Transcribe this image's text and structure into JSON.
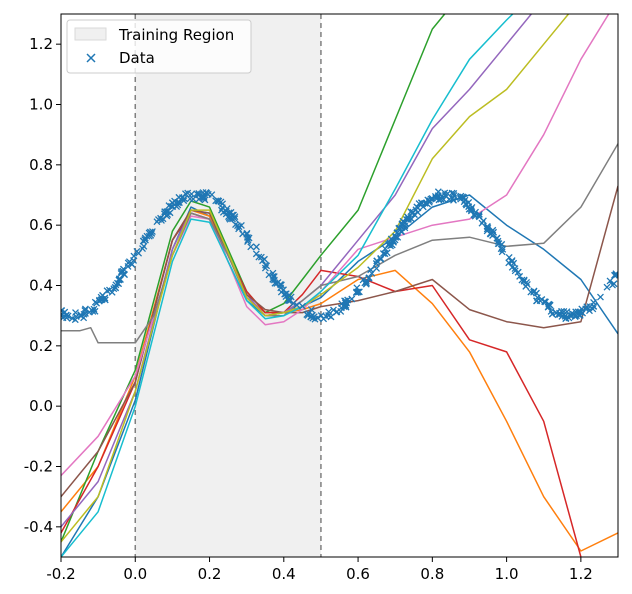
{
  "chart_data": {
    "type": "line",
    "title": "",
    "xlabel": "",
    "ylabel": "",
    "xlim": [
      -0.2,
      1.3
    ],
    "ylim": [
      -0.5,
      1.3
    ],
    "xticks": [
      "-0.2",
      "0.0",
      "0.2",
      "0.4",
      "0.6",
      "0.8",
      "1.0",
      "1.2"
    ],
    "xtick_values": [
      -0.2,
      0.0,
      0.2,
      0.4,
      0.6,
      0.8,
      1.0,
      1.2
    ],
    "yticks": [
      "-0.4",
      "-0.2",
      "0.0",
      "0.2",
      "0.4",
      "0.6",
      "0.8",
      "1.0",
      "1.2"
    ],
    "ytick_values": [
      -0.4,
      -0.2,
      0.0,
      0.2,
      0.4,
      0.6,
      0.8,
      1.0,
      1.2
    ],
    "grid": false,
    "legend_position": "top-left",
    "legend": [
      {
        "label": "Training Region",
        "kind": "shaded-region"
      },
      {
        "label": "Data",
        "kind": "scatter-marker"
      }
    ],
    "training_region": {
      "x0": 0.0,
      "x1": 0.5,
      "fill": "#f0f0f0",
      "boundary_color": "#808080",
      "boundary_style": "dashed"
    },
    "data_series": {
      "name": "Data",
      "marker": "x",
      "color": "#1f77b4",
      "x_range": [
        -0.2,
        1.3
      ],
      "count": 450,
      "function": "0.5 + 0.2*sin(3*pi*x) plus small noise"
    },
    "series": [
      {
        "color": "#1f77b4",
        "x": [
          -0.2,
          -0.1,
          0,
          0.1,
          0.15,
          0.2,
          0.25,
          0.3,
          0.35,
          0.4,
          0.45,
          0.5,
          0.6,
          0.7,
          0.8,
          0.9,
          1.0,
          1.1,
          1.2,
          1.3
        ],
        "y": [
          -0.5,
          -0.3,
          0.02,
          0.52,
          0.66,
          0.63,
          0.48,
          0.35,
          0.3,
          0.31,
          0.33,
          0.36,
          0.48,
          0.56,
          0.66,
          0.7,
          0.6,
          0.52,
          0.42,
          0.24
        ]
      },
      {
        "color": "#ff7f0e",
        "x": [
          -0.2,
          -0.1,
          0,
          0.1,
          0.15,
          0.2,
          0.25,
          0.3,
          0.35,
          0.4,
          0.45,
          0.5,
          0.6,
          0.7,
          0.8,
          0.9,
          1.0,
          1.1,
          1.2,
          1.3
        ],
        "y": [
          -0.35,
          -0.2,
          0.1,
          0.55,
          0.65,
          0.63,
          0.5,
          0.36,
          0.31,
          0.31,
          0.32,
          0.34,
          0.42,
          0.45,
          0.34,
          0.18,
          -0.05,
          -0.3,
          -0.48,
          -0.42
        ]
      },
      {
        "color": "#2ca02c",
        "x": [
          -0.2,
          -0.1,
          0,
          0.1,
          0.15,
          0.2,
          0.25,
          0.3,
          0.35,
          0.4,
          0.45,
          0.5,
          0.6,
          0.7,
          0.8,
          0.9
        ],
        "y": [
          -0.45,
          -0.15,
          0.12,
          0.58,
          0.68,
          0.66,
          0.52,
          0.38,
          0.31,
          0.34,
          0.42,
          0.5,
          0.65,
          0.95,
          1.25,
          1.4
        ]
      },
      {
        "color": "#d62728",
        "x": [
          -0.2,
          -0.1,
          0,
          0.1,
          0.15,
          0.2,
          0.25,
          0.3,
          0.35,
          0.4,
          0.45,
          0.5,
          0.6,
          0.7,
          0.8,
          0.9,
          1.0,
          1.1,
          1.2
        ],
        "y": [
          -0.42,
          -0.2,
          0.08,
          0.55,
          0.64,
          0.62,
          0.5,
          0.38,
          0.31,
          0.31,
          0.37,
          0.45,
          0.43,
          0.38,
          0.4,
          0.22,
          0.18,
          -0.05,
          -0.5
        ]
      },
      {
        "color": "#9467bd",
        "x": [
          -0.2,
          -0.1,
          0,
          0.1,
          0.15,
          0.2,
          0.25,
          0.3,
          0.35,
          0.4,
          0.45,
          0.5,
          0.6,
          0.7,
          0.8,
          0.9,
          1.0,
          1.1,
          1.2
        ],
        "y": [
          -0.4,
          -0.25,
          0.05,
          0.52,
          0.65,
          0.64,
          0.5,
          0.37,
          0.3,
          0.31,
          0.35,
          0.4,
          0.55,
          0.7,
          0.92,
          1.05,
          1.2,
          1.35,
          1.45
        ]
      },
      {
        "color": "#8c564b",
        "x": [
          -0.2,
          -0.1,
          0,
          0.1,
          0.15,
          0.2,
          0.25,
          0.3,
          0.35,
          0.4,
          0.45,
          0.5,
          0.6,
          0.7,
          0.8,
          0.9,
          1.0,
          1.1,
          1.2,
          1.3
        ],
        "y": [
          -0.3,
          -0.15,
          0.08,
          0.55,
          0.65,
          0.64,
          0.5,
          0.37,
          0.32,
          0.31,
          0.31,
          0.33,
          0.35,
          0.38,
          0.42,
          0.32,
          0.28,
          0.26,
          0.28,
          0.73
        ]
      },
      {
        "color": "#e377c2",
        "x": [
          -0.2,
          -0.1,
          0,
          0.1,
          0.15,
          0.2,
          0.25,
          0.3,
          0.35,
          0.4,
          0.45,
          0.5,
          0.6,
          0.7,
          0.8,
          0.9,
          1.0,
          1.1,
          1.2,
          1.3
        ],
        "y": [
          -0.23,
          -0.1,
          0.1,
          0.5,
          0.63,
          0.62,
          0.48,
          0.33,
          0.27,
          0.28,
          0.32,
          0.38,
          0.52,
          0.56,
          0.6,
          0.62,
          0.7,
          0.9,
          1.15,
          1.35
        ]
      },
      {
        "color": "#7f7f7f",
        "x": [
          -0.2,
          -0.15,
          -0.12,
          -0.1,
          -0.05,
          0,
          0.05,
          0.1,
          0.15,
          0.2,
          0.25,
          0.3,
          0.35,
          0.4,
          0.45,
          0.5,
          0.6,
          0.7,
          0.8,
          0.9,
          1.0,
          1.1,
          1.2,
          1.3
        ],
        "y": [
          0.25,
          0.25,
          0.26,
          0.21,
          0.21,
          0.21,
          0.3,
          0.5,
          0.64,
          0.62,
          0.5,
          0.36,
          0.3,
          0.3,
          0.35,
          0.4,
          0.43,
          0.5,
          0.55,
          0.56,
          0.53,
          0.54,
          0.66,
          0.87
        ]
      },
      {
        "color": "#bcbd22",
        "x": [
          -0.2,
          -0.1,
          0,
          0.1,
          0.15,
          0.2,
          0.25,
          0.3,
          0.35,
          0.4,
          0.45,
          0.5,
          0.6,
          0.7,
          0.8,
          0.9,
          1.0,
          1.1,
          1.2
        ],
        "y": [
          -0.45,
          -0.3,
          0.05,
          0.5,
          0.65,
          0.65,
          0.51,
          0.36,
          0.3,
          0.31,
          0.33,
          0.37,
          0.46,
          0.58,
          0.82,
          0.96,
          1.05,
          1.2,
          1.35
        ]
      },
      {
        "color": "#17becf",
        "x": [
          -0.2,
          -0.1,
          0,
          0.1,
          0.15,
          0.2,
          0.25,
          0.3,
          0.35,
          0.4,
          0.45,
          0.5,
          0.6,
          0.7,
          0.8,
          0.9,
          1.0,
          1.1,
          1.2
        ],
        "y": [
          -0.5,
          -0.35,
          0.0,
          0.48,
          0.62,
          0.61,
          0.48,
          0.35,
          0.29,
          0.3,
          0.33,
          0.38,
          0.5,
          0.72,
          0.95,
          1.15,
          1.28,
          1.4,
          1.5
        ]
      }
    ]
  }
}
